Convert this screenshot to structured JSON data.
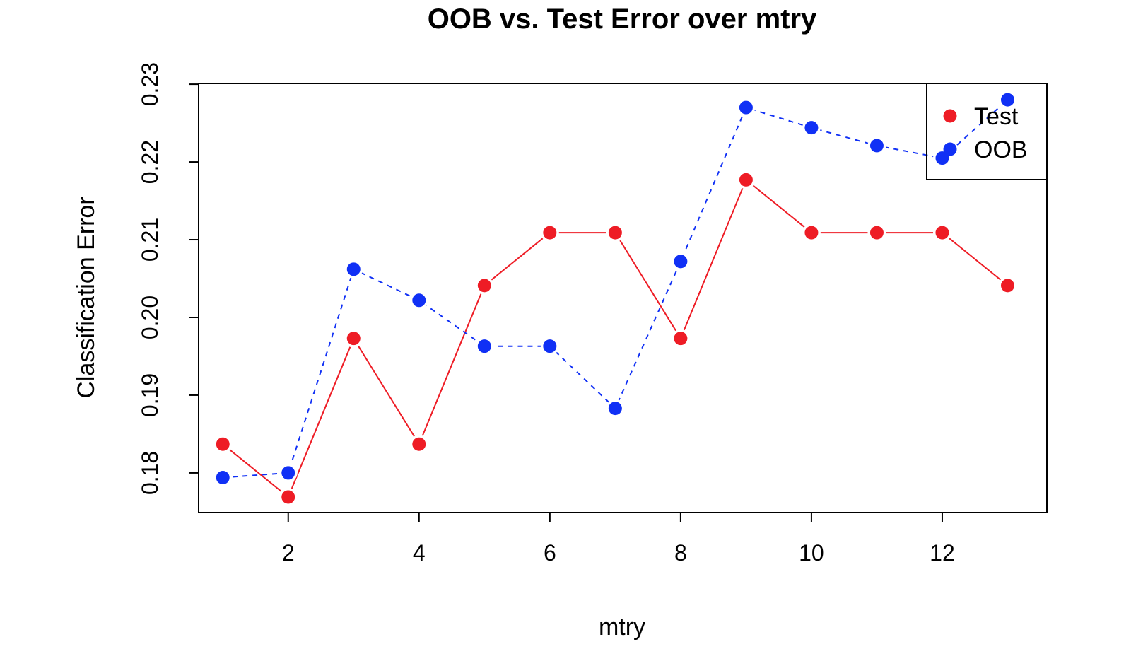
{
  "chart_data": {
    "type": "line",
    "title": "OOB vs. Test Error over mtry",
    "xlabel": "mtry",
    "ylabel": "Classification Error",
    "x": [
      1,
      2,
      3,
      4,
      5,
      6,
      7,
      8,
      9,
      10,
      11,
      12,
      13
    ],
    "xlim": [
      0.63,
      13.6
    ],
    "ylim": [
      0.1749,
      0.2301
    ],
    "x_ticks": [
      "2",
      "4",
      "6",
      "8",
      "10",
      "12"
    ],
    "x_tick_values": [
      2,
      4,
      6,
      8,
      10,
      12
    ],
    "y_ticks": [
      "0.18",
      "0.19",
      "0.20",
      "0.21",
      "0.22",
      "0.23"
    ],
    "y_tick_values": [
      0.18,
      0.19,
      0.2,
      0.21,
      0.22,
      0.23
    ],
    "grid": false,
    "legend_position": "top-right",
    "series": [
      {
        "name": "Test",
        "color": "#ee1c25",
        "line_style": "solid",
        "values": [
          0.1837,
          0.1769,
          0.1973,
          0.1837,
          0.2041,
          0.2109,
          0.2109,
          0.1973,
          0.2177,
          0.2109,
          0.2109,
          0.2109,
          0.2041
        ]
      },
      {
        "name": "OOB",
        "color": "#1030f5",
        "line_style": "dashed",
        "values": [
          0.1794,
          0.18,
          0.2062,
          0.2022,
          0.1963,
          0.1963,
          0.1883,
          0.2072,
          0.227,
          0.2244,
          0.2221,
          0.2205,
          0.228
        ]
      }
    ]
  }
}
